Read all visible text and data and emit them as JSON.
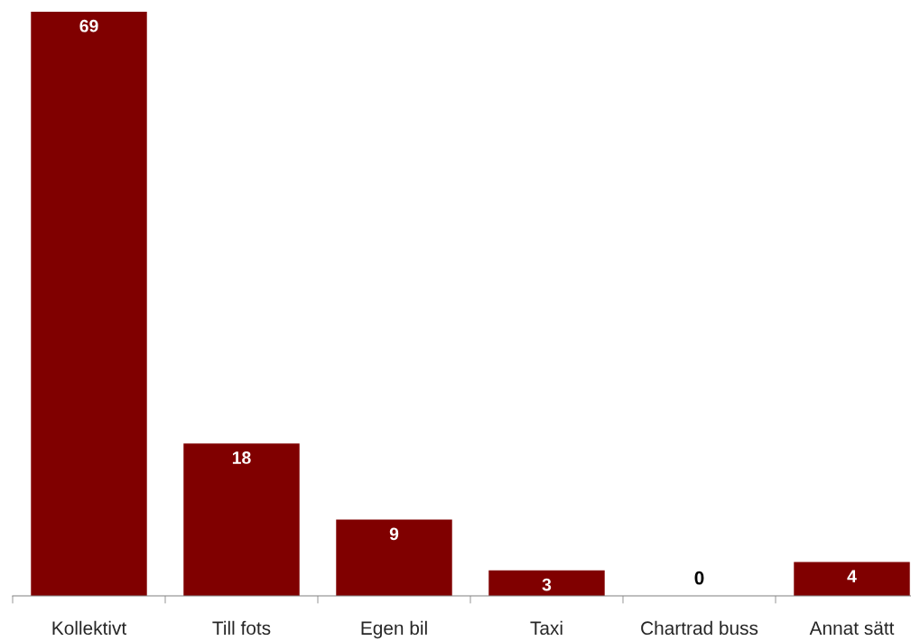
{
  "chart_data": {
    "type": "bar",
    "categories": [
      "Kollektivt",
      "Till fots",
      "Egen bil",
      "Taxi",
      "Chartrad buss",
      "Annat sätt"
    ],
    "values": [
      69,
      18,
      9,
      3,
      0,
      4
    ],
    "color": "#800000",
    "data_labels": true,
    "grid": false
  }
}
